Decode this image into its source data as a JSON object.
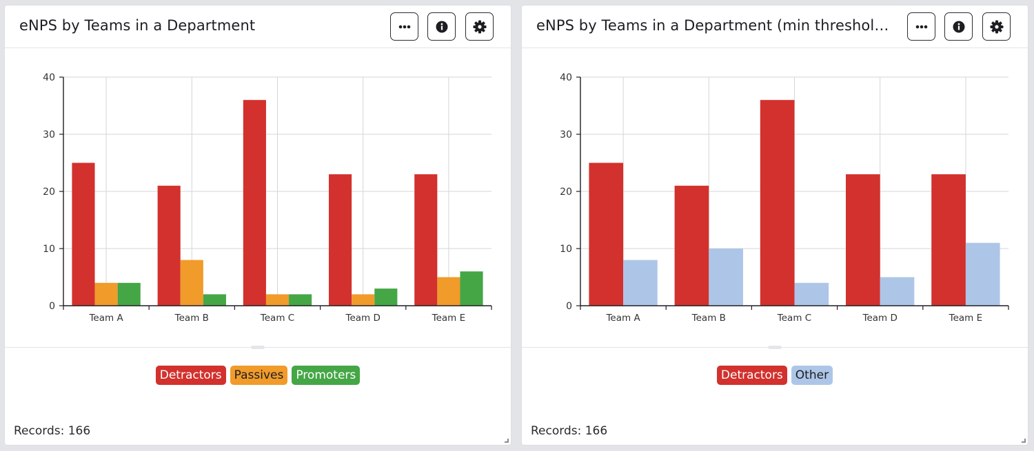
{
  "panels": [
    {
      "title": "eNPS by Teams in a Department",
      "records": "Records: 166",
      "header_buttons": {
        "more": "more-icon",
        "info": "info-icon",
        "settings": "gear-icon"
      },
      "legend": [
        {
          "label": "Detractors",
          "color": "#d2312d",
          "text_color": "#ffffff"
        },
        {
          "label": "Passives",
          "color": "#f09b2a",
          "text_color": "#1d1d22"
        },
        {
          "label": "Promoters",
          "color": "#45a646",
          "text_color": "#ffffff"
        }
      ]
    },
    {
      "title": "eNPS by Teams in a Department (min threshold a...",
      "records": "Records: 166",
      "header_buttons": {
        "more": "more-icon",
        "info": "info-icon",
        "settings": "gear-icon"
      },
      "legend": [
        {
          "label": "Detractors",
          "color": "#d2312d",
          "text_color": "#ffffff"
        },
        {
          "label": "Other",
          "color": "#adc6e8",
          "text_color": "#1d1d22"
        }
      ]
    }
  ],
  "chart_data": [
    {
      "type": "bar",
      "categories": [
        "Team A",
        "Team B",
        "Team C",
        "Team D",
        "Team E"
      ],
      "series": [
        {
          "name": "Detractors",
          "values": [
            25,
            21,
            36,
            23,
            23
          ],
          "color": "#d2312d"
        },
        {
          "name": "Passives",
          "values": [
            4,
            8,
            2,
            2,
            5
          ],
          "color": "#f09b2a"
        },
        {
          "name": "Promoters",
          "values": [
            4,
            2,
            2,
            3,
            6
          ],
          "color": "#45a646"
        }
      ],
      "title": "eNPS by Teams in a Department",
      "xlabel": "",
      "ylabel": "",
      "ylim": [
        0,
        40
      ],
      "yticks": [
        0,
        10,
        20,
        30,
        40
      ],
      "grid": true,
      "legend": "bottom-center"
    },
    {
      "type": "bar",
      "categories": [
        "Team A",
        "Team B",
        "Team C",
        "Team D",
        "Team E"
      ],
      "series": [
        {
          "name": "Detractors",
          "values": [
            25,
            21,
            36,
            23,
            23
          ],
          "color": "#d2312d"
        },
        {
          "name": "Other",
          "values": [
            8,
            10,
            4,
            5,
            11
          ],
          "color": "#adc6e8"
        }
      ],
      "title": "eNPS by Teams in a Department (min threshold a...",
      "xlabel": "",
      "ylabel": "",
      "ylim": [
        0,
        40
      ],
      "yticks": [
        0,
        10,
        20,
        30,
        40
      ],
      "grid": true,
      "legend": "bottom-center"
    }
  ]
}
